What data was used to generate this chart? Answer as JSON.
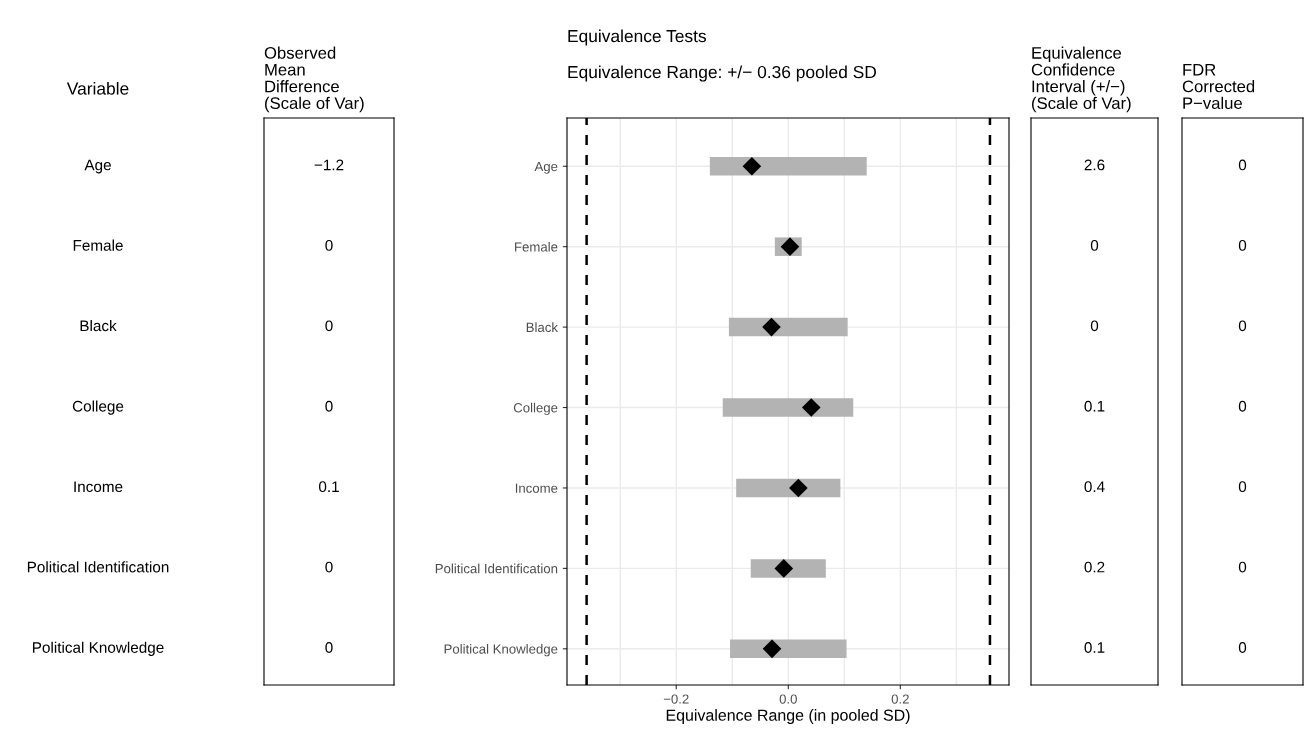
{
  "chart_data": [
    {
      "type": "other",
      "title": "Variable",
      "categories": [
        "Age",
        "Female",
        "Black",
        "College",
        "Income",
        "Political Identification",
        "Political Knowledge"
      ]
    },
    {
      "type": "other",
      "title": "Observed\nMean\nDifference\n(Scale of Var)",
      "categories": [
        null,
        null,
        null,
        null,
        null,
        null,
        null
      ],
      "value_labels": [
        "−1.2",
        "0",
        "0",
        "0",
        "0.1",
        "0",
        "0"
      ]
    },
    {
      "type": "bar",
      "orientation": "horizontal",
      "title": "Equivalence Tests",
      "subtitle": "Equivalence Range: +/− 0.36 pooled SD",
      "xlabel": "Equivalence Range (in pooled SD)",
      "categories": [
        "Age",
        "Female",
        "Black",
        "College",
        "Income",
        "Political Identification",
        "Political Knowledge"
      ],
      "series": [
        {
          "type": "bar",
          "color": "#b3b3b3",
          "base": [
            -0.14,
            -0.024,
            -0.106,
            -0.117,
            -0.093,
            -0.067,
            -0.104
          ],
          "values": [
            0.28,
            0.048,
            0.212,
            0.233,
            0.186,
            0.134,
            0.208
          ]
        },
        {
          "type": "scatter",
          "color": "#000000",
          "marker": "diamond",
          "values": [
            -0.065,
            0.003,
            -0.03,
            0.041,
            0.018,
            -0.008,
            -0.029
          ]
        }
      ],
      "xlim": [
        -0.395,
        0.394
      ],
      "xticks": [
        {
          "value": -0.2,
          "label": "−0.2"
        },
        {
          "value": 0,
          "label": "0.0"
        },
        0.2
      ],
      "ref_lines": [
        {
          "axis": "x",
          "value": -0.36,
          "color": "#000000",
          "line_style": "dashed"
        },
        {
          "axis": "x",
          "value": 0.36,
          "color": "#000000",
          "line_style": "dashed"
        }
      ],
      "grid": true
    },
    {
      "type": "other",
      "title": "Equivalence\nConfidence\nInterval (+/−)\n(Scale of Var)",
      "categories": [
        null,
        null,
        null,
        null,
        null,
        null,
        null
      ],
      "value_labels": [
        "2.6",
        "0",
        "0",
        "0.1",
        "0.4",
        "0.2",
        "0.1"
      ]
    },
    {
      "type": "other",
      "title": "FDR\nCorrected\nP−value",
      "categories": [
        null,
        null,
        null,
        null,
        null,
        null,
        null
      ],
      "value_labels": [
        "0",
        "0",
        "0",
        "0",
        "0",
        "0",
        "0"
      ]
    }
  ]
}
